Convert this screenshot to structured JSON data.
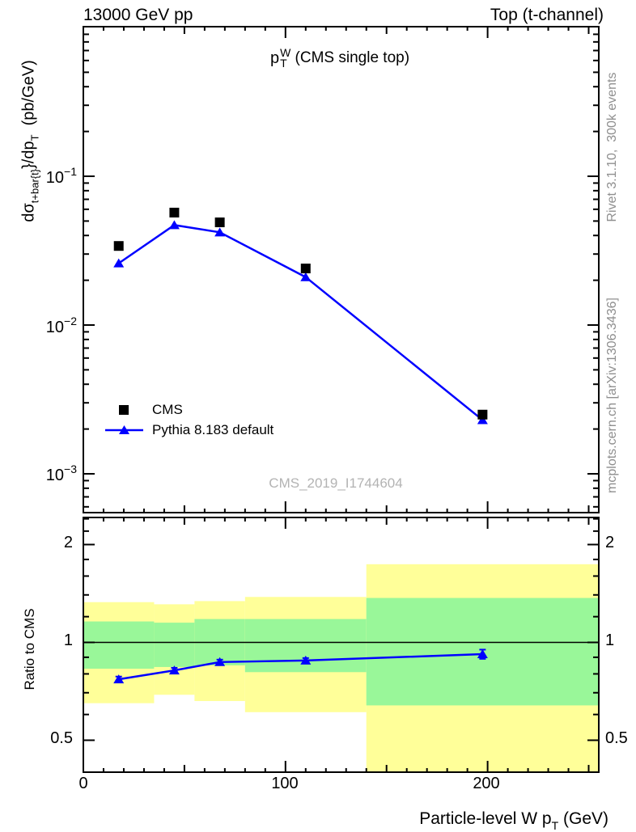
{
  "header": {
    "left": "13000 GeV pp",
    "right": "Top (t-channel)"
  },
  "title": {
    "p1": "p",
    "sup": "W",
    "sub": "T",
    "p2": " (CMS single top)"
  },
  "watermark": "CMS_2019_I1744604",
  "captions": {
    "rivet": "Rivet 3.1.10,  300k events",
    "mcplots": "mcplots.cern.ch [arXiv:1306.3436]"
  },
  "axes": {
    "main_y_label": {
      "p1": "dσ",
      "sub1": "t+bar{t}",
      "p2": "}/dp",
      "sub2": "T",
      "p3": "  (pb/GeV)"
    },
    "ratio_y_label": "Ratio to CMS",
    "x_label": {
      "p1": "Particle-level W p",
      "sub": "T",
      "p2": " (GeV)"
    },
    "main_y_ticks": [
      {
        "mant": "10",
        "exp": "−1"
      },
      {
        "mant": "10",
        "exp": "−2"
      },
      {
        "mant": "10",
        "exp": "−3"
      }
    ],
    "ratio_y_ticks": [
      "2",
      "1",
      "0.5"
    ],
    "x_ticks": [
      "0",
      "100",
      "200"
    ]
  },
  "legend": {
    "items": [
      {
        "label": "CMS",
        "marker": "black-square"
      },
      {
        "label": "Pythia 8.183 default",
        "marker": "blue-triangle-line"
      }
    ]
  },
  "colors": {
    "pythia_blue": "#0000ff",
    "band_green": "#99f799",
    "band_yellow": "#ffff99",
    "frame_black": "#000000"
  },
  "chart_data": {
    "type": "line",
    "title": "pT^W (CMS single top)",
    "header_left": "13000 GeV pp",
    "header_right": "Top (t-channel)",
    "xlabel": "Particle-level W pT (GeV)",
    "ylabel": "dsigma_{t+tbar}/dpT (pb/GeV)",
    "ratio_ylabel": "Ratio to CMS",
    "legend_position": "middle-left",
    "grid": false,
    "xlim": [
      0,
      255
    ],
    "main_ylim": [
      0.00055,
      1.0
    ],
    "ratio_ylim": [
      0.4,
      2.42
    ],
    "scales": {
      "x": "linear",
      "main_y": "log10",
      "ratio_y": "log2"
    },
    "bin_edges": [
      0,
      35,
      55,
      80,
      140,
      255
    ],
    "x": [
      17.5,
      45,
      67.5,
      110,
      197.5
    ],
    "series": [
      {
        "name": "CMS",
        "marker": "square",
        "color": "#000000",
        "values": [
          0.034,
          0.057,
          0.049,
          0.024,
          0.0025
        ]
      },
      {
        "name": "Pythia 8.183 default",
        "marker": "triangle",
        "color": "#0000ff",
        "values": [
          0.026,
          0.047,
          0.042,
          0.021,
          0.0023
        ]
      }
    ],
    "ratio": {
      "reference": "CMS",
      "series": "Pythia 8.183 default",
      "values": [
        0.77,
        0.82,
        0.87,
        0.88,
        0.92
      ],
      "errors": [
        0.015,
        0.015,
        0.015,
        0.015,
        0.03
      ]
    },
    "uncertainty_bands": {
      "yellow_hi": [
        1.33,
        1.31,
        1.34,
        1.38,
        1.74
      ],
      "green_hi": [
        1.16,
        1.15,
        1.18,
        1.18,
        1.37
      ],
      "green_lo": [
        0.83,
        0.84,
        0.85,
        0.81,
        0.64
      ],
      "yellow_lo": [
        0.65,
        0.69,
        0.66,
        0.61,
        0.4
      ]
    }
  }
}
